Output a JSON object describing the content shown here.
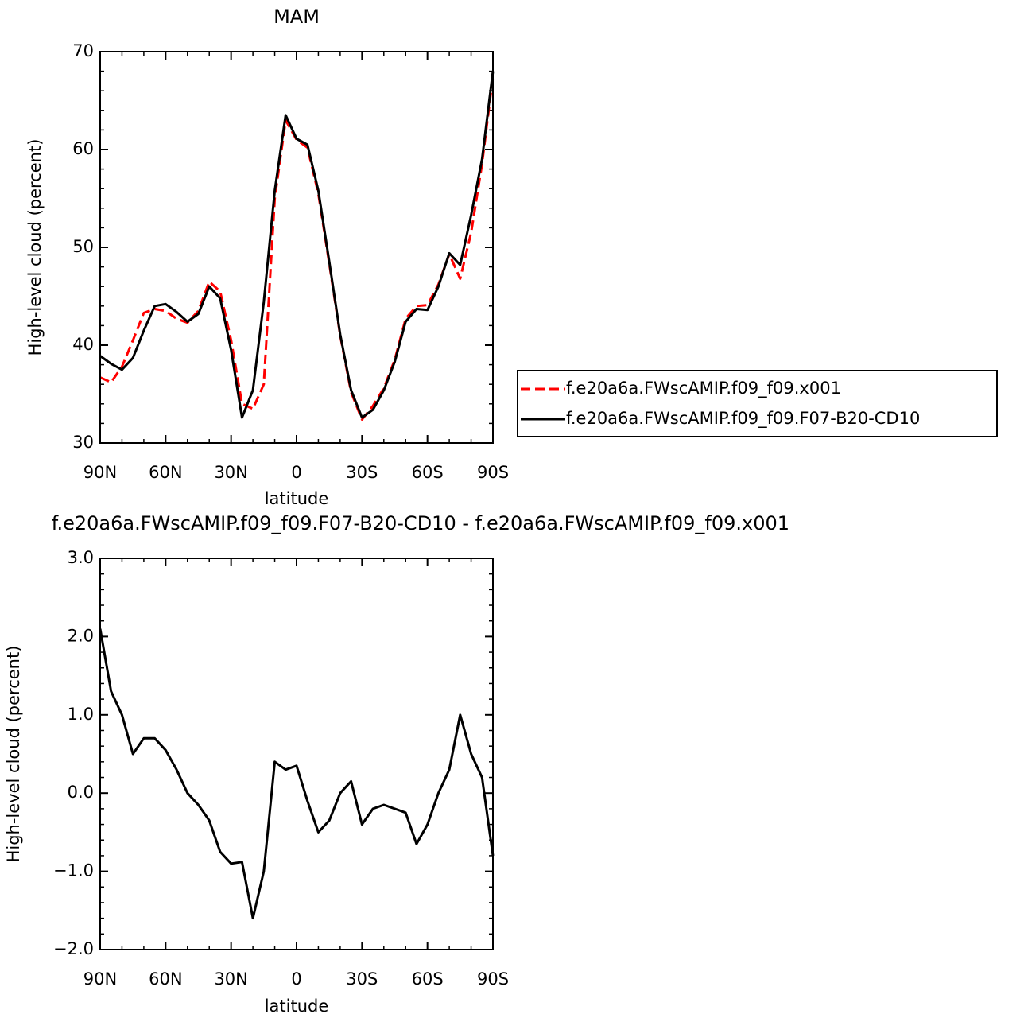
{
  "chart_data": [
    {
      "type": "line",
      "title": "MAM",
      "xlabel": "latitude",
      "ylabel": "High-level cloud (percent)",
      "x": [
        90,
        85,
        80,
        75,
        70,
        65,
        60,
        55,
        50,
        45,
        40,
        35,
        30,
        25,
        20,
        15,
        10,
        5,
        0,
        -5,
        -10,
        -15,
        -20,
        -25,
        -30,
        -35,
        -40,
        -45,
        -50,
        -55,
        -60,
        -65,
        -70,
        -75,
        -80,
        -85,
        -90
      ],
      "xlim": [
        90,
        -90
      ],
      "xticks": [
        {
          "value": 90,
          "label": "90N"
        },
        {
          "value": 60,
          "label": "60N"
        },
        {
          "value": 30,
          "label": "30N"
        },
        0,
        {
          "value": -30,
          "label": "30S"
        },
        {
          "value": -60,
          "label": "60S"
        },
        {
          "value": -90,
          "label": "90S"
        }
      ],
      "ylim": [
        30,
        70
      ],
      "yticks": [
        30,
        40,
        50,
        60,
        70
      ],
      "legend": "right",
      "series": [
        {
          "name": "f.e20a6a.FWscAMIP.f09_f09.x001",
          "color": "#ff0000",
          "dash": true,
          "values": [
            36.7,
            36.2,
            37.8,
            40.5,
            43.3,
            43.7,
            43.5,
            42.7,
            42.3,
            43.5,
            46.5,
            45.5,
            40.5,
            34.0,
            33.5,
            36.0,
            55.0,
            63.0,
            61.0,
            60.2,
            55.5,
            48.3,
            41.0,
            35.2,
            32.4,
            33.8,
            35.6,
            38.5,
            42.7,
            44.0,
            44.1,
            46.2,
            49.3,
            46.8,
            51.5,
            58.5,
            67.5
          ]
        },
        {
          "name": "f.e20a6a.FWscAMIP.f09_f09.F07-B20-CD10",
          "color": "#000000",
          "dash": false,
          "values": [
            38.9,
            38.1,
            37.5,
            38.7,
            41.5,
            44.0,
            44.2,
            43.4,
            42.4,
            43.2,
            46.0,
            44.8,
            39.5,
            32.6,
            35.4,
            44.4,
            55.8,
            63.5,
            61.1,
            60.5,
            55.8,
            48.5,
            41.1,
            35.4,
            32.6,
            33.4,
            35.4,
            38.3,
            42.4,
            43.7,
            43.6,
            46.0,
            49.4,
            48.2,
            53.3,
            59.0,
            68.0
          ]
        }
      ]
    },
    {
      "type": "line",
      "title": "f.e20a6a.FWscAMIP.f09_f09.F07-B20-CD10 - f.e20a6a.FWscAMIP.f09_f09.x001",
      "xlabel": "latitude",
      "ylabel": "High-level cloud (percent)",
      "x": [
        90,
        85,
        80,
        75,
        70,
        65,
        60,
        55,
        50,
        45,
        40,
        35,
        30,
        25,
        20,
        15,
        10,
        5,
        0,
        -5,
        -10,
        -15,
        -20,
        -25,
        -30,
        -35,
        -40,
        -45,
        -50,
        -55,
        -60,
        -65,
        -70,
        -75,
        -80,
        -85,
        -90
      ],
      "xlim": [
        90,
        -90
      ],
      "xticks": [
        {
          "value": 90,
          "label": "90N"
        },
        {
          "value": 60,
          "label": "60N"
        },
        {
          "value": 30,
          "label": "30N"
        },
        0,
        {
          "value": -30,
          "label": "30S"
        },
        {
          "value": -60,
          "label": "60S"
        },
        {
          "value": -90,
          "label": "90S"
        }
      ],
      "ylim": [
        -2,
        3
      ],
      "yticks": [
        {
          "value": -2,
          "label": "−2.0"
        },
        {
          "value": -1,
          "label": "−1.0"
        },
        {
          "value": 0,
          "label": "0.0"
        },
        {
          "value": 1,
          "label": "1.0"
        },
        {
          "value": 2,
          "label": "2.0"
        },
        {
          "value": 3,
          "label": "3.0"
        }
      ],
      "series": [
        {
          "color": "#000000",
          "dash": false,
          "values": [
            2.1,
            1.3,
            1.0,
            0.5,
            0.7,
            0.7,
            0.55,
            0.3,
            0.0,
            -0.15,
            -0.35,
            -0.75,
            -0.9,
            -0.88,
            -1.6,
            -1.0,
            0.4,
            0.3,
            0.35,
            -0.1,
            -0.5,
            -0.35,
            0.0,
            0.15,
            -0.4,
            -0.2,
            -0.15,
            -0.2,
            -0.25,
            -0.65,
            -0.4,
            0.0,
            0.3,
            1.0,
            0.5,
            0.2,
            -0.8
          ]
        }
      ]
    }
  ]
}
